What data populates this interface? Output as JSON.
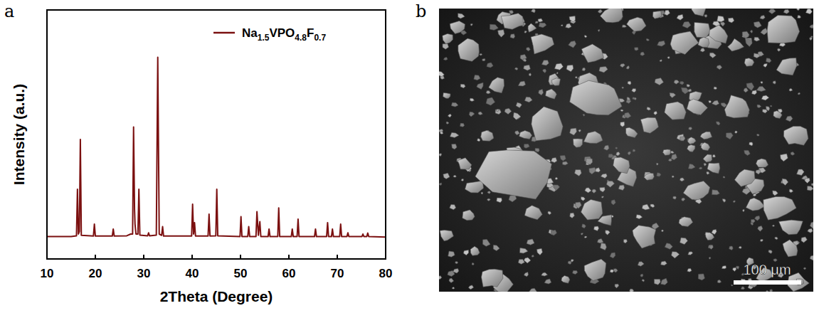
{
  "chart_data": {
    "type": "line",
    "xlabel": "2Theta (Degree)",
    "ylabel": "Intensity (a.u.)",
    "xlim": [
      10,
      80
    ],
    "xticks": [
      10,
      20,
      30,
      40,
      50,
      60,
      70,
      80
    ],
    "ylim": [
      0,
      100
    ],
    "tick_labels": "x",
    "grid": false,
    "legend": "upper right",
    "x": [
      10,
      15,
      16.1,
      16.3,
      16.5,
      16.7,
      16.9,
      17.1,
      19.6,
      19.8,
      20,
      23.5,
      23.7,
      23.9,
      26.5,
      27.3,
      27.7,
      27.9,
      28.1,
      28.2,
      28.4,
      28.8,
      29.0,
      29.2,
      30.8,
      31,
      31.2,
      32.6,
      32.9,
      33.2,
      33.7,
      33.9,
      34.1,
      39.9,
      40.1,
      40.3,
      40.5,
      40.7,
      43.3,
      43.5,
      43.7,
      44.9,
      45.1,
      45.3,
      49.9,
      50.1,
      50.3,
      51.5,
      51.7,
      51.9,
      53.2,
      53.4,
      53.7,
      54.0,
      54.2,
      55.7,
      55.9,
      56.1,
      57.7,
      57.9,
      58.1,
      60.5,
      60.7,
      60.9,
      61.7,
      61.9,
      62.1,
      65.3,
      65.5,
      65.7,
      67.8,
      68.0,
      68.2,
      68.8,
      69.0,
      69.2,
      70.5,
      70.7,
      70.9,
      72.0,
      72.2,
      72.4,
      75.1,
      75.3,
      75.5,
      76.1,
      76.3,
      76.5,
      80
    ],
    "series": [
      {
        "name": "Na1.5VPO4.8F0.7",
        "color": "#7b1010",
        "values": [
          9,
          9,
          9.3,
          28,
          10,
          11,
          48,
          9.5,
          9.2,
          14,
          9.2,
          9.2,
          12,
          9.2,
          9.3,
          10,
          10,
          53,
          20,
          14,
          10,
          10,
          28,
          9.6,
          9.3,
          10.5,
          9.3,
          9.6,
          81,
          10,
          9.5,
          13,
          9.2,
          9.2,
          22,
          10,
          14.6,
          9.2,
          9.2,
          18,
          9.2,
          9.3,
          28,
          9.3,
          9,
          17,
          9,
          9,
          13,
          9,
          9,
          19,
          9.5,
          15,
          9,
          9,
          12,
          9,
          9,
          20.5,
          9,
          9,
          12,
          9,
          9,
          16,
          9,
          9,
          12,
          9,
          9,
          14.6,
          9,
          9,
          12,
          9,
          9,
          14,
          9,
          9,
          10.5,
          9,
          9,
          10,
          9,
          9,
          10.4,
          9,
          8.8
        ]
      }
    ]
  },
  "panel_labels": [
    "a",
    "b"
  ],
  "sem_image": {
    "scale_bar_label": "100 μm"
  }
}
